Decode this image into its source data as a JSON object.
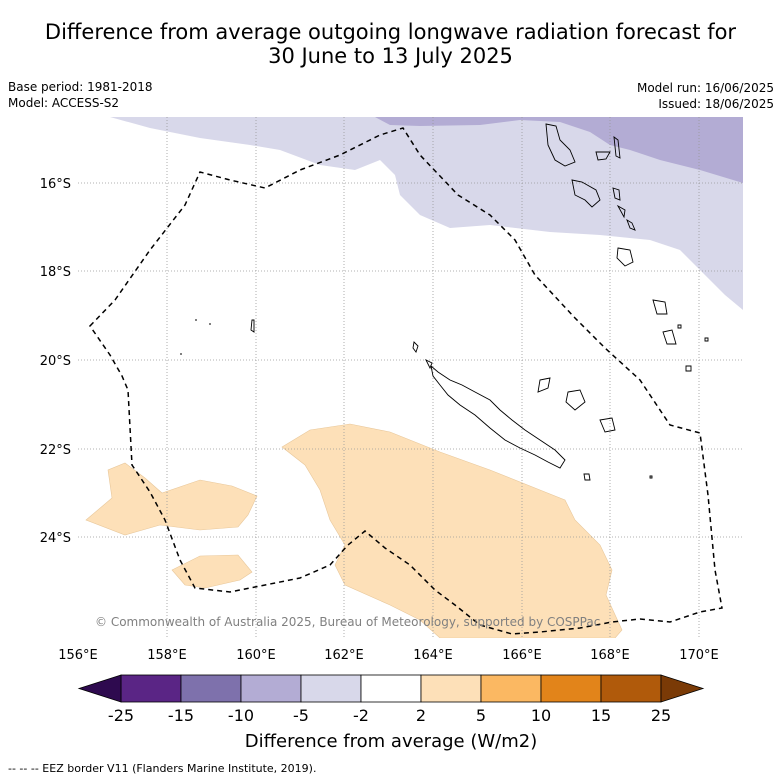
{
  "title": {
    "line1": "Difference from average outgoing longwave radiation forecast for",
    "line2": "30 June to 13 July 2025"
  },
  "meta": {
    "base_period": "Base period: 1981-2018",
    "model": "Model: ACCESS-S2",
    "model_run": "Model run: 16/06/2025",
    "issued": "Issued: 18/06/2025"
  },
  "map": {
    "lat_labels": [
      "16°S",
      "18°S",
      "20°S",
      "22°S",
      "24°S"
    ],
    "lon_labels": [
      "156°E",
      "158°E",
      "160°E",
      "162°E",
      "164°E",
      "166°E",
      "168°E",
      "170°E"
    ],
    "copyright": "© Commonwealth of Australia 2025, Bureau of Meteorology, supported by COSPPac",
    "colors": {
      "light_purple": "#d8d8ea",
      "mid_purple": "#b3acd4",
      "light_orange": "#fde0b8",
      "coast": "#000000",
      "eez": "#000000",
      "grid": "#999999"
    }
  },
  "colorbar": {
    "tick_labels": [
      "-25",
      "-15",
      "-10",
      "-5",
      "-2",
      "2",
      "5",
      "10",
      "15",
      "25"
    ],
    "colors": [
      "#5a2585",
      "#7e71ac",
      "#b3acd4",
      "#d8d8ea",
      "#ffffff",
      "#fde0b8",
      "#fbb862",
      "#e2841a",
      "#b05a0b"
    ],
    "low_extend_color": "#2e0a4f",
    "high_extend_color": "#7a3a06",
    "title": "Difference from average (W/m2)"
  },
  "footer": "--  --  -- EEZ border V11 (Flanders Marine Institute, 2019)."
}
